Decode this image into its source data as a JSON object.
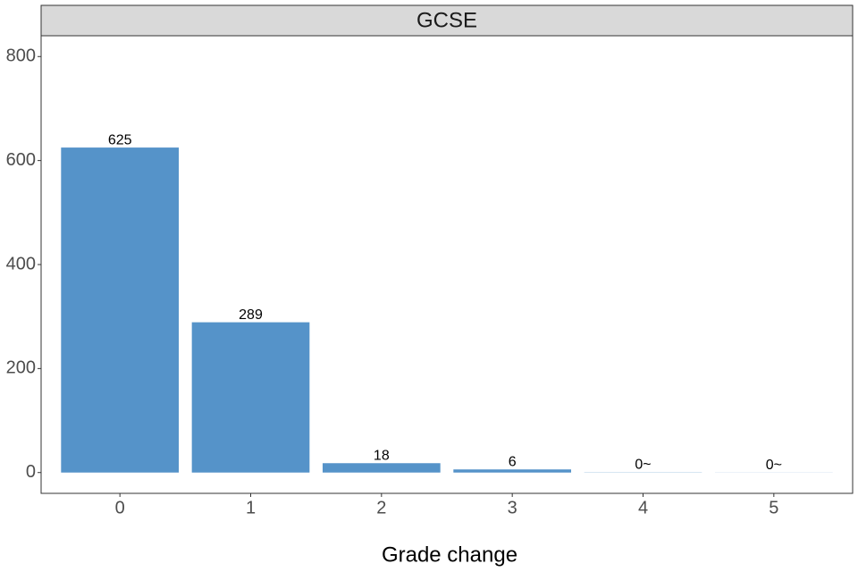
{
  "chart_data": {
    "type": "bar",
    "title": "GCSE",
    "x_label": "Grade change",
    "categories": [
      "0",
      "1",
      "2",
      "3",
      "4",
      "5"
    ],
    "values": [
      625,
      289,
      18,
      6,
      0.4,
      0.2
    ],
    "value_labels": [
      "625",
      "289",
      "18",
      "6",
      "0~",
      "0~"
    ],
    "color": "#5593c9",
    "ylim": [
      -40,
      840
    ],
    "yticks": [
      0,
      200,
      400,
      600,
      800
    ],
    "grid": false
  }
}
